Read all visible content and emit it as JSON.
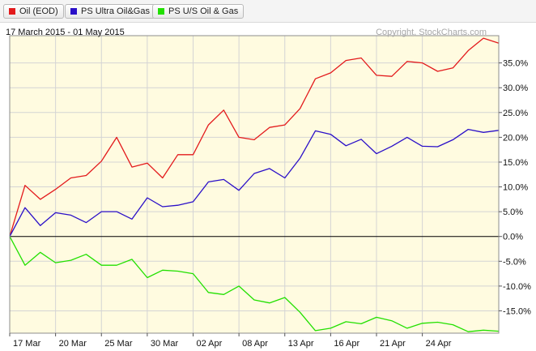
{
  "legend": [
    {
      "label": "Oil (EOD)",
      "color": "#e31a1c"
    },
    {
      "label": "PS Ultra Oil&Gas",
      "color": "#2a0fc8"
    },
    {
      "label": "PS U/S Oil & Gas",
      "color": "#22e000"
    }
  ],
  "date_range": "17 March 2015 - 01 May 2015",
  "credit": "Copyright, StockCharts.com",
  "colors": {
    "positive_fill": "#fffbe0",
    "negative_fill": "#fffbe0",
    "grid": "#d4d4d4",
    "zero_line": "#000000"
  },
  "chart_data": {
    "type": "line",
    "title": "",
    "xlabel": "",
    "ylabel": "",
    "ylim": [
      -19.5,
      40.5
    ],
    "y_ticks": [
      {
        "value": 35,
        "label": "35.0%"
      },
      {
        "value": 30,
        "label": "30.0%"
      },
      {
        "value": 25,
        "label": "25.0%"
      },
      {
        "value": 20,
        "label": "20.0%"
      },
      {
        "value": 15,
        "label": "15.0%"
      },
      {
        "value": 10,
        "label": "10.0%"
      },
      {
        "value": 5,
        "label": "5.0%"
      },
      {
        "value": 0,
        "label": "0.0%"
      },
      {
        "value": -5,
        "label": "-5.0%"
      },
      {
        "value": -10,
        "label": "-10.0%"
      },
      {
        "value": -15,
        "label": "-15.0%"
      }
    ],
    "x_ticks": [
      {
        "index": 0,
        "label": "17  Mar"
      },
      {
        "index": 3,
        "label": "20  Mar"
      },
      {
        "index": 6,
        "label": "25  Mar"
      },
      {
        "index": 9,
        "label": "30  Mar"
      },
      {
        "index": 12,
        "label": "02  Apr"
      },
      {
        "index": 15,
        "label": "08  Apr"
      },
      {
        "index": 18,
        "label": "13  Apr"
      },
      {
        "index": 21,
        "label": "16  Apr"
      },
      {
        "index": 24,
        "label": "21  Apr"
      },
      {
        "index": 27,
        "label": "24  Apr"
      }
    ],
    "series": [
      {
        "name": "Oil (EOD)",
        "color": "#e31a1c",
        "values": [
          0,
          10.3,
          7.5,
          9.5,
          11.8,
          12.3,
          15.2,
          20.0,
          14.0,
          14.8,
          11.8,
          16.5,
          16.5,
          22.5,
          25.5,
          20.0,
          19.5,
          22.0,
          22.5,
          25.8,
          31.8,
          33.0,
          35.5,
          36.0,
          32.5,
          32.3,
          35.3,
          35.0,
          33.3,
          34.0,
          37.5,
          40.0,
          39.0
        ]
      },
      {
        "name": "PS Ultra Oil&Gas",
        "color": "#2a0fc8",
        "values": [
          0,
          5.8,
          2.2,
          4.8,
          4.3,
          2.8,
          5.0,
          5.0,
          3.5,
          7.8,
          6.0,
          6.3,
          7.0,
          11.0,
          11.5,
          9.3,
          12.7,
          13.7,
          11.8,
          15.8,
          21.3,
          20.6,
          18.3,
          19.6,
          16.7,
          18.2,
          20.0,
          18.2,
          18.1,
          19.5,
          21.6,
          21.0,
          21.4
        ]
      },
      {
        "name": "PS U/S Oil & Gas",
        "color": "#22e000",
        "values": [
          0,
          -5.8,
          -3.2,
          -5.3,
          -4.8,
          -3.6,
          -5.8,
          -5.8,
          -4.6,
          -8.3,
          -6.8,
          -7.0,
          -7.5,
          -11.3,
          -11.7,
          -10.0,
          -12.8,
          -13.4,
          -12.3,
          -15.3,
          -19.0,
          -18.5,
          -17.2,
          -17.6,
          -16.3,
          -17.0,
          -18.5,
          -17.5,
          -17.3,
          -17.8,
          -19.2,
          -18.9,
          -19.1
        ]
      }
    ]
  }
}
